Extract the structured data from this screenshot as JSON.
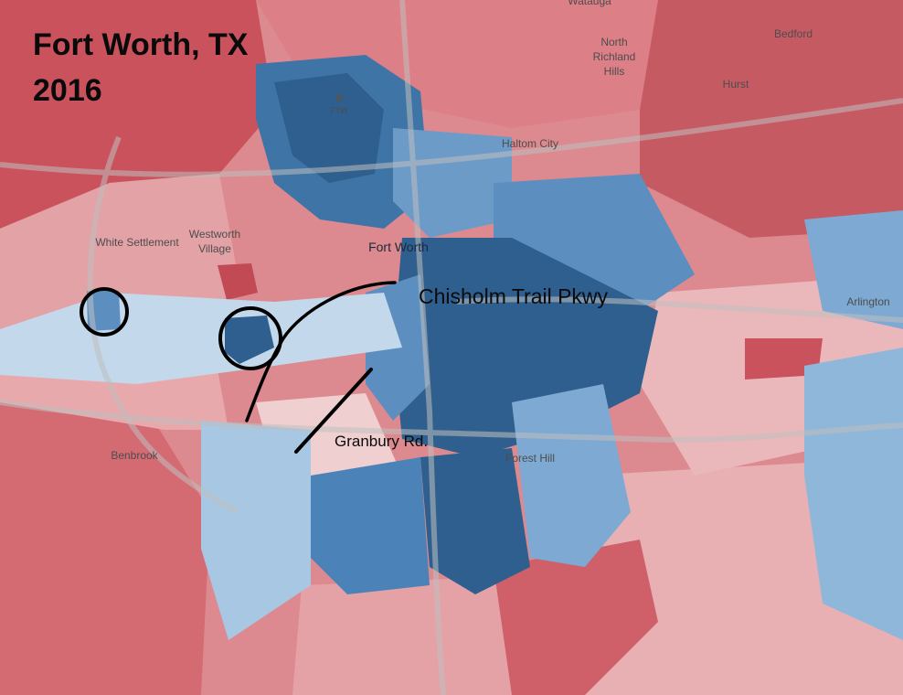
{
  "title_line1": "Fort Worth, TX",
  "title_line2": "2016",
  "road_labels": {
    "chisholm": "Chisholm Trail Pkwy",
    "granbury": "Granbury Rd."
  },
  "places": {
    "watauga": "Watauga",
    "north_richland_hills_1": "North",
    "north_richland_hills_2": "Richland",
    "north_richland_hills_3": "Hills",
    "bedford": "Bedford",
    "hurst": "Hurst",
    "ftw": "FTW",
    "haltom_city": "Haltom City",
    "white_settlement": "White Settlement",
    "westworth_1": "Westworth",
    "westworth_2": "Village",
    "fort_worth": "Fort Worth",
    "arlington": "Arlington",
    "benbrook": "Benbrook",
    "forest_hill": "Forest Hill"
  },
  "colors": {
    "red_dark": "#c9525c",
    "red_mid": "#dc7f86",
    "red_light": "#eab2b5",
    "red_pale": "#f1cfd0",
    "blue_dark": "#2e5f8e",
    "blue_mid": "#4b83b8",
    "blue_light": "#8fb7da",
    "blue_pale": "#c3d8ea"
  }
}
